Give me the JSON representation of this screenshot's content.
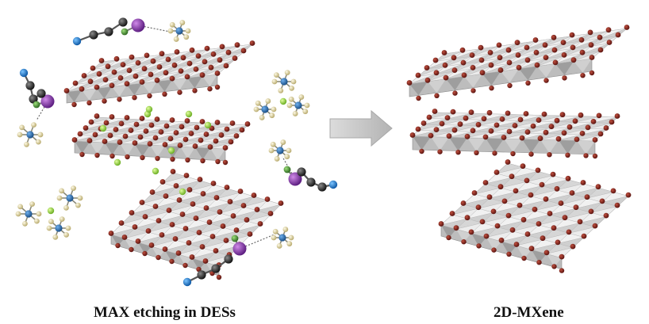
{
  "captions": {
    "left": "MAX etching in DESs",
    "right": "2D-MXene"
  },
  "icons": {
    "arrow": "process-arrow-icon",
    "layer": "mxene-layer-icon",
    "anion": "octahedral-anion-icon",
    "cation": "organic-cation-icon",
    "ion": "lithium-ion-icon"
  },
  "colors": {
    "sheet_top": "#e6e6e6",
    "sheet_front": "#bdbdbd",
    "sheet_tri_dark": "#9a9a9a",
    "atom_termination": "#7a1f1a",
    "anion_center": "#2f6aa8",
    "anion_ligand": "#d9cfa0",
    "cation_purple": "#8e3fb8",
    "cation_green": "#4f9a3a",
    "carbon_dark": "#333333",
    "nitrogen_blue": "#1f7bd1",
    "lithium_green": "#9bd848",
    "arrow": "#c4c4c4"
  }
}
